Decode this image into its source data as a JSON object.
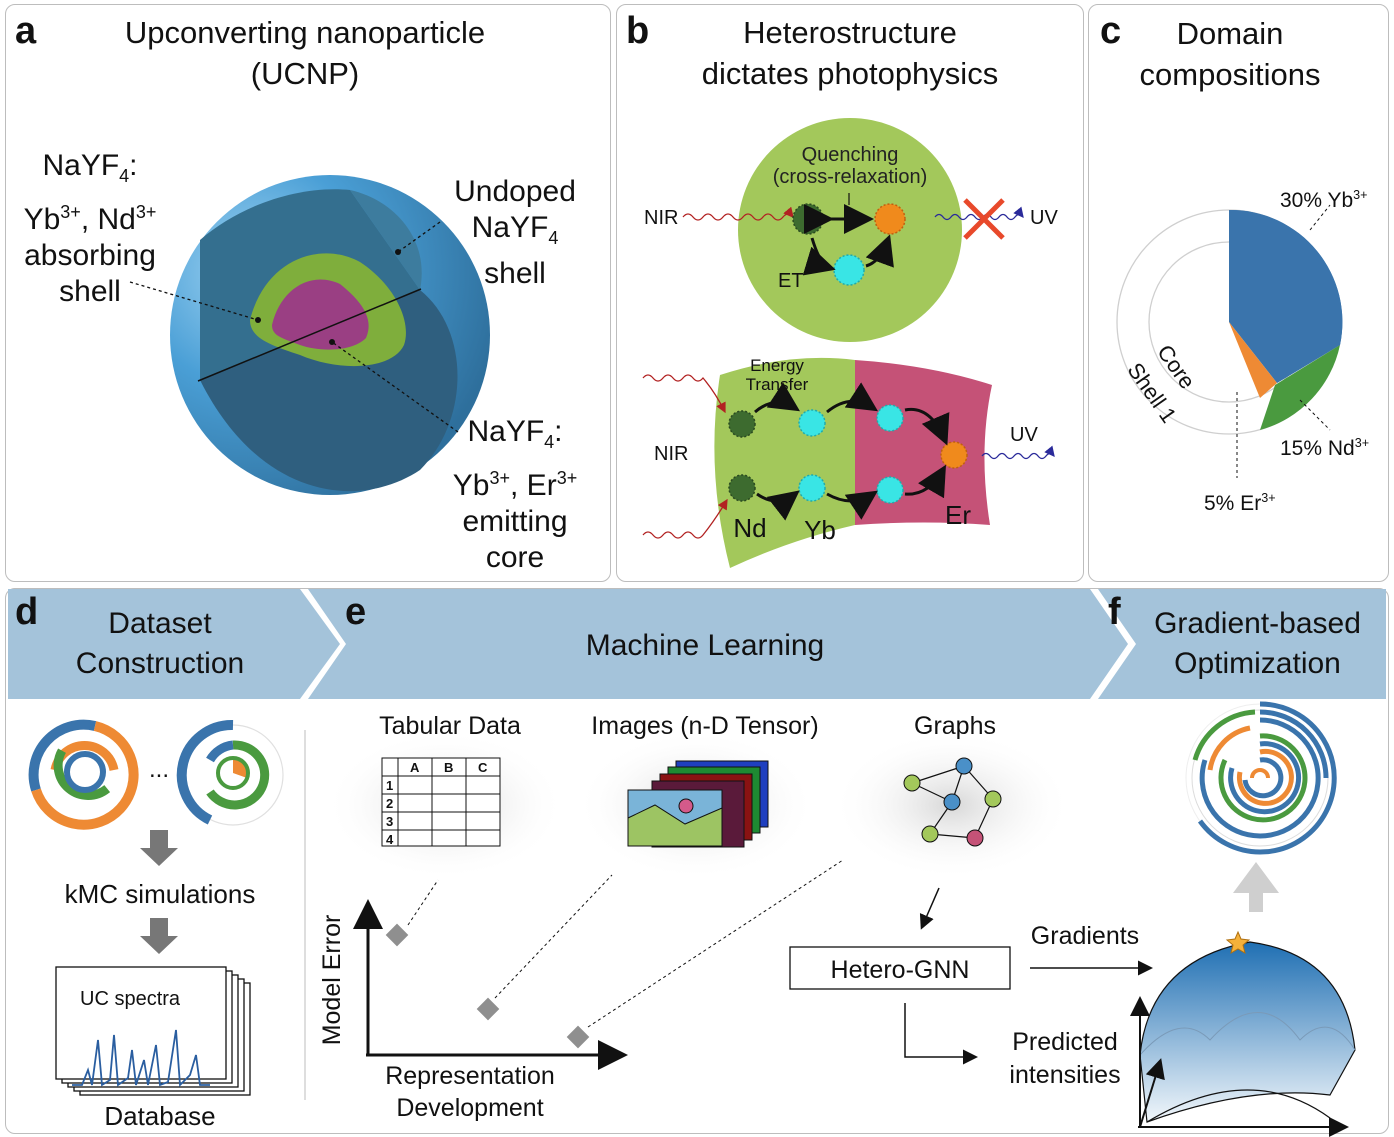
{
  "panel_a": {
    "letter": "a",
    "title_line1": "Upconverting nanoparticle",
    "title_line2": "(UCNP)",
    "shell_label": {
      "l1": "NaYF",
      "l1_sub": "4",
      "l1_tail": ":",
      "l2a": "Yb",
      "l2a_sup": "3+",
      "l2b": ", Nd",
      "l2b_sup": "3+",
      "l3": "absorbing",
      "l4": "shell"
    },
    "undoped_label": {
      "l1": "Undoped",
      "l2": "NaYF",
      "l2_sub": "4",
      "l3": "shell"
    },
    "core_label": {
      "l1": "NaYF",
      "l1_sub": "4",
      "l1_tail": ":",
      "l2a": "Yb",
      "l2a_sup": "3+",
      "l2b": ", Er",
      "l2b_sup": "3+",
      "l3": "emitting",
      "l4": "core"
    }
  },
  "panel_b": {
    "letter": "b",
    "title_line1": "Heterostructure",
    "title_line2": "dictates photophysics",
    "quenching_l1": "Quenching",
    "quenching_l2": "(cross-relaxation)",
    "nir": "NIR",
    "uv": "UV",
    "et": "ET",
    "energy_transfer_l1": "Energy",
    "energy_transfer_l2": "Transfer",
    "nir2": "NIR",
    "uv2": "UV",
    "nd": "Nd",
    "yb": "Yb",
    "er": "Er"
  },
  "panel_c": {
    "letter": "c",
    "title_line1": "Domain",
    "title_line2": "compositions",
    "core": "Core",
    "shell1": "Shell 1",
    "yb": {
      "pct": "30% Yb",
      "sup": "3+"
    },
    "nd": {
      "pct": "15% Nd",
      "sup": "3+"
    },
    "er": {
      "pct": "5% Er",
      "sup": "3+"
    }
  },
  "banner": {
    "d_letter": "d",
    "d_l1": "Dataset",
    "d_l2": "Construction",
    "e_letter": "e",
    "e_text": "Machine Learning",
    "f_letter": "f",
    "f_l1": "Gradient-based",
    "f_l2": "Optimization"
  },
  "panel_d": {
    "dots": "...",
    "kmc": "kMC simulations",
    "uc_spectra": "UC spectra",
    "database": "Database"
  },
  "panel_e": {
    "tabular": "Tabular Data",
    "images": "Images (n-D Tensor)",
    "graphs": "Graphs",
    "table_cols": [
      "A",
      "B",
      "C"
    ],
    "table_rows": [
      "1",
      "2",
      "3",
      "4"
    ],
    "y_axis": "Model Error",
    "x_axis_l1": "Representation",
    "x_axis_l2": "Development"
  },
  "panel_f": {
    "hetero_gnn": "Hetero-GNN",
    "gradients": "Gradients",
    "predicted_l1": "Predicted",
    "predicted_l2": "intensities"
  },
  "colors": {
    "shell_blue": "#346f8f",
    "green": "#7fae3c",
    "magenta": "#9a3f83",
    "ring_blue": "#3a74ac",
    "ring_orange": "#ee8a34",
    "ring_green": "#4a9a3f",
    "banner": "#a4c3da",
    "lightgreen": "#a3c85b",
    "pink": "#c55277"
  }
}
